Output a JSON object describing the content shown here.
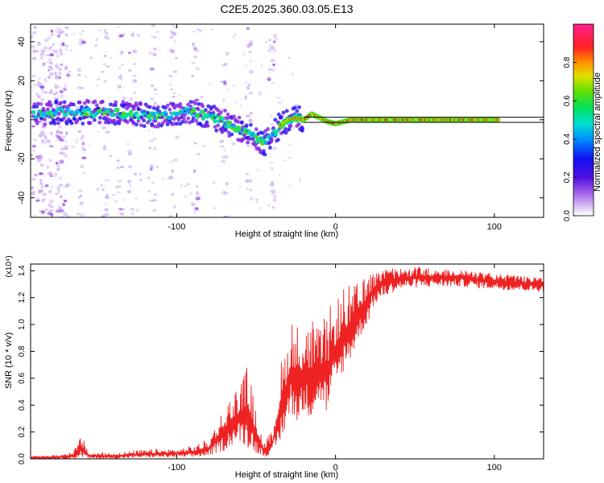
{
  "title": "C2E5.2025.360.03.05.E13",
  "chart_data": [
    {
      "type": "heatmap",
      "title": "C2E5.2025.360.03.05.E13",
      "xlabel": "Height of straight line (km)",
      "ylabel": "Frequency (Hz)",
      "xlim": [
        -192,
        131
      ],
      "ylim": [
        -50,
        49
      ],
      "xticks": [
        -100,
        0,
        100
      ],
      "xtick_labels": [
        "-100",
        "0",
        "100"
      ],
      "yticks": [
        -40,
        -20,
        0,
        20,
        40
      ],
      "ytick_labels": [
        "-40",
        "-20",
        "0",
        "20",
        "40"
      ],
      "ridge_center": {
        "x": [
          -190,
          -170,
          -150,
          -130,
          -110,
          -100,
          -90,
          -80,
          -70,
          -60,
          -50,
          -45,
          -40,
          -35,
          -30,
          -25,
          -20,
          -15,
          -10,
          -5,
          0,
          5,
          10,
          20,
          40,
          60,
          80,
          100,
          131
        ],
        "frequency_hz": [
          3,
          4,
          4,
          3,
          2,
          3,
          4,
          2,
          -1,
          -5,
          -10,
          -12,
          -8,
          -3,
          0,
          1,
          0,
          3,
          1,
          -1,
          -2,
          -1,
          0,
          0,
          0,
          0,
          0,
          0,
          0
        ]
      },
      "colorbar": {
        "label": "Normalized spectral amplitude",
        "range": [
          0.0,
          1.0
        ],
        "ticks": [
          0.0,
          0.2,
          0.4,
          0.6,
          0.8
        ],
        "tick_labels": [
          "0.0",
          "0.2",
          "0.4",
          "0.6",
          "0.8"
        ],
        "colormap": [
          "#ffffff",
          "#c8a8f0",
          "#8020e0",
          "#2010f0",
          "#00b4ff",
          "#00e0a0",
          "#40e020",
          "#c0e000",
          "#ff9000",
          "#ff2020",
          "#ff2080"
        ]
      }
    },
    {
      "type": "line",
      "xlabel": "Height of straight line (km)",
      "ylabel": "SNR (10 * v/v)",
      "y_scale_label": "(x10⁴)",
      "xlim": [
        -192,
        131
      ],
      "ylim": [
        0,
        1.45
      ],
      "xticks": [
        -100,
        0,
        100
      ],
      "xtick_labels": [
        "-100",
        "0",
        "100"
      ],
      "yticks": [
        0.0,
        0.2,
        0.4,
        0.6,
        0.8,
        1.0,
        1.2,
        1.4
      ],
      "ytick_labels": [
        "0.0",
        "0.2",
        "0.4",
        "0.6",
        "0.8",
        "1.0",
        "1.2",
        "1.4"
      ],
      "color": "#ee2222",
      "envelope": {
        "x": [
          -192,
          -175,
          -165,
          -160,
          -155,
          -140,
          -120,
          -100,
          -90,
          -80,
          -75,
          -70,
          -65,
          -60,
          -55,
          -50,
          -45,
          -40,
          -35,
          -30,
          -28,
          -25,
          -22,
          -20,
          -18,
          -15,
          -12,
          -10,
          -8,
          -5,
          -3,
          0,
          5,
          10,
          15,
          20,
          25,
          30,
          40,
          50,
          60,
          80,
          100,
          131
        ],
        "low": [
          0.0,
          0.0,
          0.0,
          0.01,
          0.0,
          0.0,
          0.01,
          0.01,
          0.01,
          0.02,
          0.04,
          0.06,
          0.1,
          0.12,
          0.08,
          0.04,
          0.02,
          0.02,
          0.1,
          0.28,
          0.3,
          0.3,
          0.25,
          0.35,
          0.33,
          0.3,
          0.4,
          0.4,
          0.42,
          0.3,
          0.45,
          0.5,
          0.65,
          0.75,
          0.9,
          1.0,
          1.15,
          1.2,
          1.26,
          1.27,
          1.28,
          1.28,
          1.26,
          1.24
        ],
        "high": [
          0.02,
          0.03,
          0.06,
          0.18,
          0.05,
          0.05,
          0.07,
          0.08,
          0.1,
          0.15,
          0.28,
          0.4,
          0.5,
          0.58,
          0.72,
          0.35,
          0.12,
          0.22,
          0.7,
          0.92,
          1.12,
          1.0,
          1.08,
          0.98,
          1.0,
          1.05,
          1.02,
          0.95,
          1.05,
          1.1,
          1.15,
          1.2,
          1.28,
          1.3,
          1.32,
          1.36,
          1.39,
          1.41,
          1.42,
          1.43,
          1.42,
          1.41,
          1.38,
          1.35
        ]
      }
    }
  ]
}
